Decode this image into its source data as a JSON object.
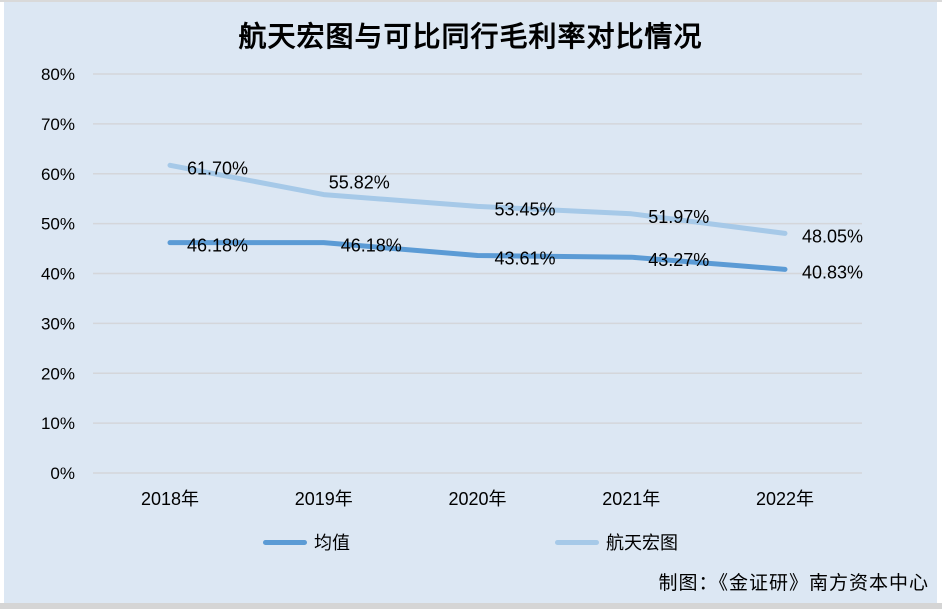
{
  "page": {
    "title": "航天宏图与可比同行毛利率对比情况",
    "credit": "制图：《金证研》南方资本中心"
  },
  "colors": {
    "panel_bg": "#dce7f3",
    "frame_border": "#d9d9d9",
    "gridline": "#d4d6da",
    "text": "#000000",
    "series_mean": "#5b9bd5",
    "series_company": "#a6c9e8"
  },
  "chart_data": {
    "type": "line",
    "title": "航天宏图与可比同行毛利率对比情况",
    "categories": [
      "2018年",
      "2019年",
      "2020年",
      "2021年",
      "2022年"
    ],
    "series": [
      {
        "name": "均值",
        "color": "#5b9bd5",
        "values": [
          46.18,
          46.18,
          43.61,
          43.27,
          40.83
        ],
        "labels": [
          "46.18%",
          "46.18%",
          "43.61%",
          "43.27%",
          "40.83%"
        ]
      },
      {
        "name": "航天宏图",
        "color": "#a6c9e8",
        "values": [
          61.7,
          55.82,
          53.45,
          51.97,
          48.05
        ],
        "labels": [
          "61.70%",
          "55.82%",
          "53.45%",
          "51.97%",
          "48.05%"
        ]
      }
    ],
    "y_axis": {
      "min": 0,
      "max": 80,
      "step": 10,
      "tick_labels": [
        "0%",
        "10%",
        "20%",
        "30%",
        "40%",
        "50%",
        "60%",
        "70%",
        "80%"
      ]
    },
    "xlabel": "",
    "ylabel": "",
    "grid": "horizontal",
    "legend_position": "bottom"
  }
}
